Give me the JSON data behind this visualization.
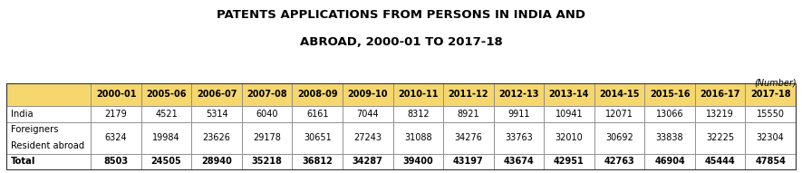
{
  "title_line1": "PATENTS APPLICATIONS FROM PERSONS IN INDIA AND",
  "title_line2": "ABROAD, 2000-01 TO 2017-18",
  "unit_label": "(Number)",
  "columns": [
    "",
    "2000-01",
    "2005-06",
    "2006-07",
    "2007-08",
    "2008-09",
    "2009-10",
    "2010-11",
    "2011-12",
    "2012-13",
    "2013-14",
    "2014-15",
    "2015-16",
    "2016-17",
    "2017-18"
  ],
  "rows": [
    {
      "label": "India",
      "label2": "",
      "values": [
        "2179",
        "4521",
        "5314",
        "6040",
        "6161",
        "7044",
        "8312",
        "8921",
        "9911",
        "10941",
        "12071",
        "13066",
        "13219",
        "15550"
      ],
      "bold": false
    },
    {
      "label": "Foreigners",
      "label2": "Resident abroad",
      "values": [
        "6324",
        "19984",
        "23626",
        "29178",
        "30651",
        "27243",
        "31088",
        "34276",
        "33763",
        "32010",
        "30692",
        "33838",
        "32225",
        "32304"
      ],
      "bold": false
    },
    {
      "label": "Total",
      "label2": "",
      "values": [
        "8503",
        "24505",
        "28940",
        "35218",
        "36812",
        "34287",
        "39400",
        "43197",
        "43674",
        "42951",
        "42763",
        "46904",
        "45444",
        "47854"
      ],
      "bold": true
    }
  ],
  "header_bg": "#F5D76E",
  "row_bg": "#FFFFFF",
  "border_color": "#888888",
  "outer_border_color": "#555555",
  "fig_width": 8.85,
  "fig_height": 1.91,
  "dpi": 100
}
